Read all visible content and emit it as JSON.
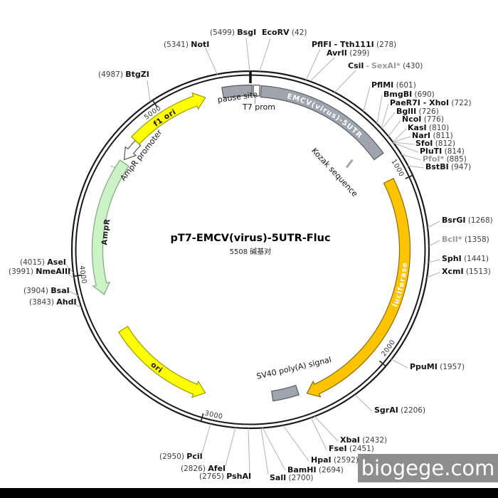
{
  "plasmid": {
    "name": "pT7-EMCV(virus)-5UTR-Fluc",
    "size": "5508 碱基对"
  },
  "ticks": [
    "1000",
    "2000",
    "3000",
    "4000",
    "5000"
  ],
  "features": {
    "pause_site": {
      "label": "pause site"
    },
    "t7_promoter": {
      "label": "T7 prom"
    },
    "emcv_5utr": {
      "label": "EMCV(virus)-5UTR"
    },
    "kozak": {
      "label": "Kozak sequence"
    },
    "luciferase": {
      "label": "luciferase"
    },
    "sv40_polya": {
      "label": "SV40 poly(A) signal"
    },
    "ori": {
      "label": "ori"
    },
    "ampr": {
      "label": "AmpR"
    },
    "ampr_promoter": {
      "label": "AmpR promoter"
    },
    "f1_ori": {
      "label": "f1 ori"
    }
  },
  "colors": {
    "gray_feature": "#9ea5ad",
    "yellow_feature": "#ffff00",
    "amber_feature": "#ffc400",
    "green_feature": "#ccf3c6",
    "ring": "#1a1a1a"
  },
  "enzymes": [
    {
      "id": "bsgi",
      "parts": [
        [
          "n",
          "(5499) "
        ],
        [
          "b",
          "BsgI"
        ]
      ]
    },
    {
      "id": "ecorv",
      "parts": [
        [
          "b",
          "EcoRV"
        ],
        [
          "n",
          " (42)"
        ]
      ]
    },
    {
      "id": "noti",
      "parts": [
        [
          "n",
          "(5341) "
        ],
        [
          "b",
          "NotI"
        ]
      ]
    },
    {
      "id": "pflfi",
      "parts": [
        [
          "b",
          "PflFI - Tth111I"
        ],
        [
          "n",
          " (278)"
        ]
      ]
    },
    {
      "id": "avrii",
      "parts": [
        [
          "b",
          "AvrII"
        ],
        [
          "n",
          " (299)"
        ]
      ]
    },
    {
      "id": "csii",
      "parts": [
        [
          "b",
          "CsiI"
        ],
        [
          "n",
          " - "
        ],
        [
          "g",
          "SexAI*"
        ],
        [
          "n",
          " (430)"
        ]
      ]
    },
    {
      "id": "pflmi",
      "parts": [
        [
          "b",
          "PflMI"
        ],
        [
          "n",
          " (601)"
        ]
      ]
    },
    {
      "id": "bmgbi",
      "parts": [
        [
          "b",
          "BmgBI"
        ],
        [
          "n",
          " (690)"
        ]
      ]
    },
    {
      "id": "paer7i",
      "parts": [
        [
          "b",
          "PaeR7I - XhoI"
        ],
        [
          "n",
          " (722)"
        ]
      ]
    },
    {
      "id": "bglii",
      "parts": [
        [
          "b",
          "BglII"
        ],
        [
          "n",
          " (726)"
        ]
      ]
    },
    {
      "id": "ncoi",
      "parts": [
        [
          "b",
          "NcoI"
        ],
        [
          "n",
          " (776)"
        ]
      ]
    },
    {
      "id": "kasi",
      "parts": [
        [
          "b",
          "KasI"
        ],
        [
          "n",
          " (810)"
        ]
      ]
    },
    {
      "id": "nari",
      "parts": [
        [
          "b",
          "NarI"
        ],
        [
          "n",
          " (811)"
        ]
      ]
    },
    {
      "id": "sfoi",
      "parts": [
        [
          "b",
          "SfoI"
        ],
        [
          "n",
          " (812)"
        ]
      ]
    },
    {
      "id": "pluti",
      "parts": [
        [
          "b",
          "PluTI"
        ],
        [
          "n",
          " (814)"
        ]
      ]
    },
    {
      "id": "pfoi",
      "parts": [
        [
          "g",
          "PfoI*"
        ],
        [
          "n",
          " (885)"
        ]
      ]
    },
    {
      "id": "bstbi",
      "parts": [
        [
          "b",
          "BstBI"
        ],
        [
          "n",
          " (947)"
        ]
      ]
    },
    {
      "id": "bsrgi",
      "parts": [
        [
          "b",
          "BsrGI"
        ],
        [
          "n",
          " (1268)"
        ]
      ]
    },
    {
      "id": "bcli",
      "parts": [
        [
          "g",
          "BclI*"
        ],
        [
          "n",
          " (1358)"
        ]
      ]
    },
    {
      "id": "sphi",
      "parts": [
        [
          "b",
          "SphI"
        ],
        [
          "n",
          " (1441)"
        ]
      ]
    },
    {
      "id": "xcmi",
      "parts": [
        [
          "b",
          "XcmI"
        ],
        [
          "n",
          " (1513)"
        ]
      ]
    },
    {
      "id": "ppumi",
      "parts": [
        [
          "b",
          "PpuMI"
        ],
        [
          "n",
          " (1957)"
        ]
      ]
    },
    {
      "id": "sgrai",
      "parts": [
        [
          "b",
          "SgrAI"
        ],
        [
          "n",
          " (2206)"
        ]
      ]
    },
    {
      "id": "xbai",
      "parts": [
        [
          "b",
          "XbaI"
        ],
        [
          "n",
          " (2432)"
        ]
      ]
    },
    {
      "id": "fsei",
      "parts": [
        [
          "b",
          "FseI"
        ],
        [
          "n",
          " (2451)"
        ]
      ]
    },
    {
      "id": "hpai",
      "parts": [
        [
          "b",
          "HpaI"
        ],
        [
          "n",
          " (2592)"
        ]
      ]
    },
    {
      "id": "bamhi",
      "parts": [
        [
          "b",
          "BamHI"
        ],
        [
          "n",
          " (2694)"
        ]
      ]
    },
    {
      "id": "sali",
      "parts": [
        [
          "b",
          "SalI"
        ],
        [
          "n",
          " (2700)"
        ]
      ]
    },
    {
      "id": "pshai",
      "parts": [
        [
          "n",
          "(2765) "
        ],
        [
          "b",
          "PshAI"
        ]
      ]
    },
    {
      "id": "afei",
      "parts": [
        [
          "n",
          "(2826) "
        ],
        [
          "b",
          "AfeI"
        ]
      ]
    },
    {
      "id": "pcii",
      "parts": [
        [
          "n",
          "(2950) "
        ],
        [
          "b",
          "PciI"
        ]
      ]
    },
    {
      "id": "ahdi",
      "parts": [
        [
          "n",
          "(3843) "
        ],
        [
          "b",
          "AhdI"
        ]
      ]
    },
    {
      "id": "bsai",
      "parts": [
        [
          "n",
          "(3904) "
        ],
        [
          "b",
          "BsaI"
        ]
      ]
    },
    {
      "id": "nmeaiii",
      "parts": [
        [
          "n",
          "(3991) "
        ],
        [
          "b",
          "NmeAIII"
        ]
      ]
    },
    {
      "id": "asei",
      "parts": [
        [
          "n",
          "(4015) "
        ],
        [
          "b",
          "AseI"
        ]
      ]
    },
    {
      "id": "btgzi",
      "parts": [
        [
          "n",
          "(4987) "
        ],
        [
          "b",
          "BtgZI"
        ]
      ]
    }
  ],
  "watermark": {
    "text": "biogege.com"
  }
}
